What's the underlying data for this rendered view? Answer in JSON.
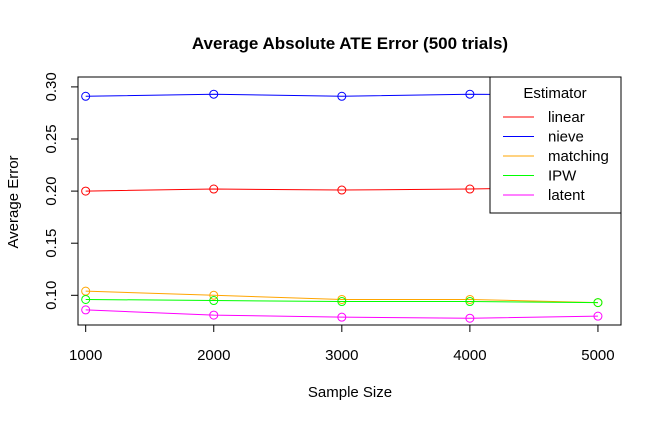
{
  "chart_data": {
    "type": "line",
    "title": "Average Absolute ATE Error (500 trials)",
    "xlabel": "Sample Size",
    "ylabel": "Average Error",
    "x": [
      1000,
      2000,
      3000,
      4000,
      5000
    ],
    "x_ticks": [
      "1000",
      "2000",
      "3000",
      "4000",
      "5000"
    ],
    "y_ticks": [
      "0.10",
      "0.15",
      "0.20",
      "0.25",
      "0.30"
    ],
    "xlim": [
      940,
      5180
    ],
    "ylim": [
      0.0715,
      0.3095
    ],
    "grid": false,
    "legend_title": "Estimator",
    "legend_position": "top-right",
    "series": [
      {
        "name": "linear",
        "color": "#ff0000",
        "values": [
          0.2,
          0.202,
          0.201,
          0.202,
          0.204
        ]
      },
      {
        "name": "nieve",
        "color": "#0000ff",
        "values": [
          0.291,
          0.293,
          0.291,
          0.293,
          0.292
        ]
      },
      {
        "name": "matching",
        "color": "#ffa500",
        "values": [
          0.104,
          0.1,
          0.096,
          0.096,
          0.093
        ]
      },
      {
        "name": "IPW",
        "color": "#00ff00",
        "values": [
          0.096,
          0.095,
          0.094,
          0.094,
          0.093
        ]
      },
      {
        "name": "latent",
        "color": "#ff00ff",
        "values": [
          0.086,
          0.081,
          0.079,
          0.078,
          0.08
        ]
      }
    ]
  }
}
